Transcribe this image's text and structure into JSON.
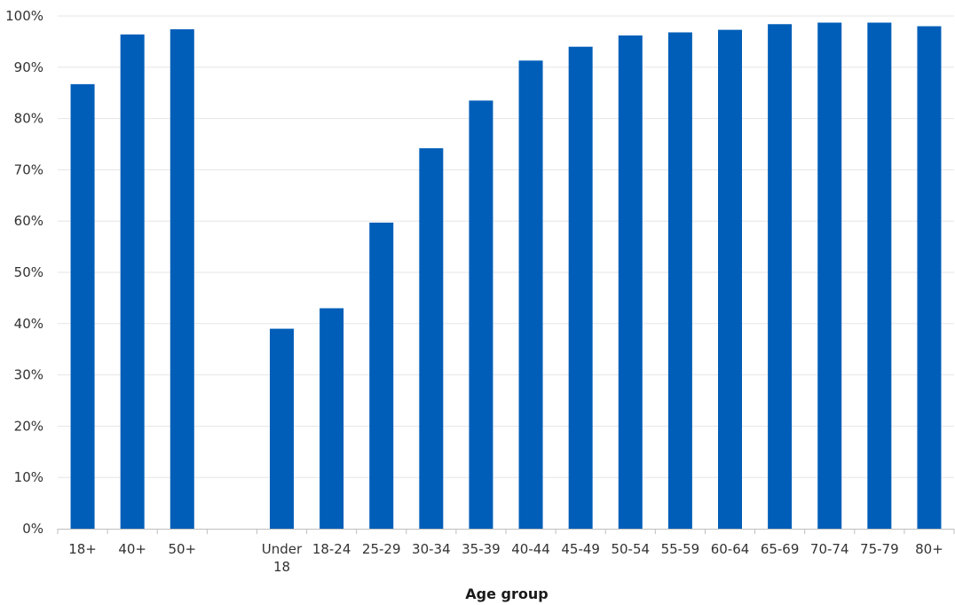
{
  "chart_data": {
    "type": "bar",
    "title": "",
    "xlabel": "Age group",
    "ylabel": "",
    "ylim": [
      0,
      100
    ],
    "y_ticks": [
      "0%",
      "10%",
      "20%",
      "30%",
      "40%",
      "50%",
      "60%",
      "70%",
      "80%",
      "90%",
      "100%"
    ],
    "y_unit": "%",
    "grid": true,
    "bar_color": "#005EB8",
    "categories": [
      [
        "18+"
      ],
      [
        "40+"
      ],
      [
        "50+"
      ],
      [
        ""
      ],
      [
        "Under",
        "18"
      ],
      [
        "18-24"
      ],
      [
        "25-29"
      ],
      [
        "30-34"
      ],
      [
        "35-39"
      ],
      [
        "40-44"
      ],
      [
        "45-49"
      ],
      [
        "50-54"
      ],
      [
        "55-59"
      ],
      [
        "60-64"
      ],
      [
        "65-69"
      ],
      [
        "70-74"
      ],
      [
        "75-79"
      ],
      [
        "80+"
      ]
    ],
    "values": [
      86.7,
      96.4,
      97.4,
      null,
      39.0,
      43.0,
      59.7,
      74.2,
      83.5,
      91.3,
      94.0,
      96.2,
      96.8,
      97.3,
      98.4,
      98.7,
      98.7,
      98.0
    ]
  }
}
